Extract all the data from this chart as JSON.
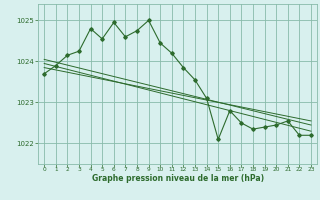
{
  "background_color": "#d8f0ee",
  "grid_color": "#88bbaa",
  "line_color": "#2d6b2d",
  "xlabel": "Graphe pression niveau de la mer (hPa)",
  "ylim": [
    1021.5,
    1025.4
  ],
  "xlim": [
    -0.5,
    23.5
  ],
  "yticks": [
    1022,
    1023,
    1024,
    1025
  ],
  "xticks": [
    0,
    1,
    2,
    3,
    4,
    5,
    6,
    7,
    8,
    9,
    10,
    11,
    12,
    13,
    14,
    15,
    16,
    17,
    18,
    19,
    20,
    21,
    22,
    23
  ],
  "main_x": [
    0,
    1,
    2,
    3,
    4,
    5,
    6,
    7,
    8,
    9,
    10,
    11,
    12,
    13,
    14,
    15,
    16,
    17,
    18,
    19,
    20,
    21,
    22,
    23
  ],
  "main_y": [
    1023.7,
    1023.9,
    1024.15,
    1024.25,
    1024.8,
    1024.55,
    1024.95,
    1024.6,
    1024.75,
    1025.0,
    1024.45,
    1024.2,
    1023.85,
    1023.55,
    1023.1,
    1022.1,
    1022.8,
    1022.5,
    1022.35,
    1022.4,
    1022.45,
    1022.55,
    1022.2,
    1022.2
  ],
  "line2_x": [
    0,
    23
  ],
  "line2_y": [
    1023.95,
    1022.3
  ],
  "line3_x": [
    0,
    23
  ],
  "line3_y": [
    1023.85,
    1022.55
  ],
  "line4_x": [
    0,
    23
  ],
  "line4_y": [
    1024.05,
    1022.45
  ]
}
